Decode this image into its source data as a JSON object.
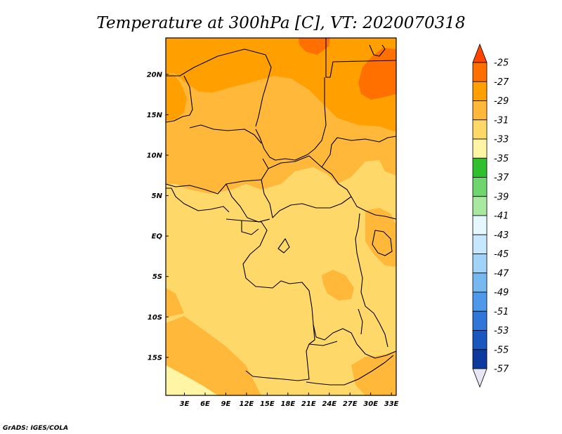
{
  "chart_data": {
    "type": "heatmap",
    "title": "Temperature at 300hPa [C], VT: 2020070318",
    "xlabel": "",
    "ylabel": "",
    "x_ticks": [
      "3E",
      "6E",
      "9E",
      "12E",
      "15E",
      "18E",
      "21E",
      "24E",
      "27E",
      "30E",
      "33E"
    ],
    "y_ticks": [
      "20N",
      "15N",
      "10N",
      "5N",
      "EQ",
      "5S",
      "10S",
      "15S"
    ],
    "xlim": [
      0.3,
      33.7
    ],
    "ylim": [
      -19.7,
      24.5
    ],
    "legend_position": "right",
    "colorbar": {
      "levels": [
        "-25",
        "-27",
        "-29",
        "-31",
        "-33",
        "-35",
        "-37",
        "-39",
        "-41",
        "-43",
        "-45",
        "-47",
        "-49",
        "-51",
        "-53",
        "-55",
        "-57"
      ],
      "colors": [
        "#ff4500",
        "#ff7000",
        "#ffa000",
        "#ffb83a",
        "#ffd86a",
        "#fff5a5",
        "#2fbf2f",
        "#6fd56f",
        "#a8e8a0",
        "#e6f8ff",
        "#c6e8ff",
        "#a0d3f7",
        "#78b8f0",
        "#4e99ea",
        "#2f76d8",
        "#1a58bf",
        "#0d3a9c",
        "#07106b",
        "#e8e6f5"
      ]
    },
    "values_summary": "Temperature ranges from about -25 C (northeast, Sudan/Chad) to about -35 C (southwest coast); most of central Africa is between -31 and -33 C."
  },
  "credit": "GrADS: IGES/COLA"
}
